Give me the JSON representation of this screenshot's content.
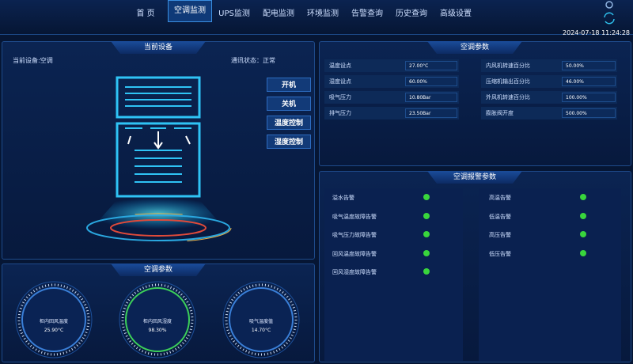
{
  "nav": {
    "items": [
      "首 页",
      "空调监测",
      "UPS监测",
      "配电监测",
      "环境监测",
      "告警查询",
      "历史查询",
      "高级设置"
    ],
    "active": 1
  },
  "datetime": "2024-07-18 11:24:28",
  "device_panel": {
    "title": "当前设备",
    "device": "当前设备:空调",
    "status": "通讯状态：正常",
    "buttons": [
      "开机",
      "关机",
      "温度控制",
      "湿度控制"
    ]
  },
  "gauge_panel": {
    "title": "空调参数",
    "gauges": [
      {
        "label": "柜内回风温度",
        "value": "25.90°C"
      },
      {
        "label": "柜内回风湿度",
        "value": "98.30%"
      },
      {
        "label": "吸气温度值",
        "value": "14.70°C"
      }
    ]
  },
  "param_panel": {
    "title": "空调参数",
    "rows": [
      [
        "温度设点",
        "27.00°C",
        "内风机转速百分比",
        "50.00%"
      ],
      [
        "湿度设点",
        "60.00%",
        "压缩机输出百分比",
        "46.00%"
      ],
      [
        "吸气压力",
        "10.80Bar",
        "外风机转速百分比",
        "100.00%"
      ],
      [
        "排气压力",
        "23.50Bar",
        "膨胀阀开度",
        "500.00%"
      ]
    ]
  },
  "alarm_panel": {
    "title": "空调报警参数",
    "left": [
      "溢水告警",
      "吸气温度故障告警",
      "吸气压力故障告警",
      "回风温度故障告警",
      "回风湿度故障告警"
    ],
    "right": [
      "高温告警",
      "低温告警",
      "高压告警",
      "低压告警"
    ]
  }
}
